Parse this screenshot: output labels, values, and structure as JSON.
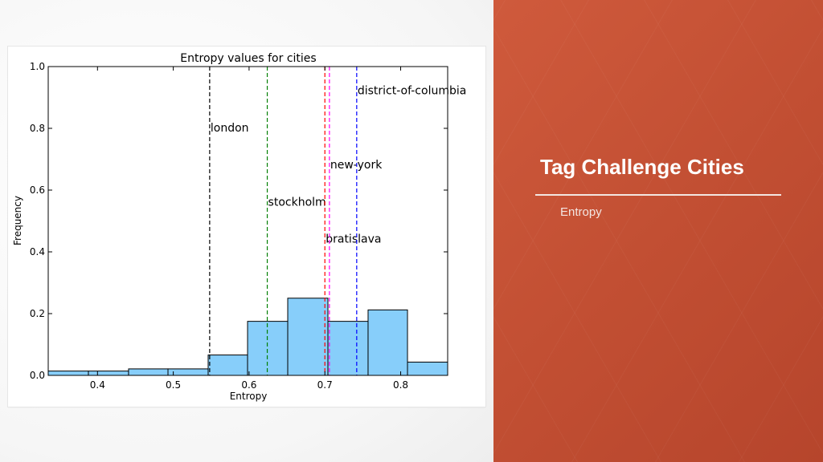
{
  "slide": {
    "title": "Tag Challenge Cities",
    "subtitle": "Entropy",
    "colors": {
      "panel": "#c4502f",
      "text": "#ffffff"
    }
  },
  "chart_data": {
    "type": "bar",
    "title": "Entropy values for cities",
    "xlabel": "Entropy",
    "ylabel": "Frequency",
    "xlim": [
      0.335,
      0.862
    ],
    "ylim": [
      0,
      1.0
    ],
    "xticks": [
      {
        "value": 0.4,
        "label": "0.4"
      },
      {
        "value": 0.5,
        "label": "0.5"
      },
      {
        "value": 0.6,
        "label": "0.6"
      },
      {
        "value": 0.7,
        "label": "0.7"
      },
      {
        "value": 0.8,
        "label": "0.8"
      }
    ],
    "yticks": [
      {
        "value": 0.0,
        "label": "0.0"
      },
      {
        "value": 0.2,
        "label": "0.2"
      },
      {
        "value": 0.4,
        "label": "0.4"
      },
      {
        "value": 0.6,
        "label": "0.6"
      },
      {
        "value": 0.8,
        "label": "0.8"
      },
      {
        "value": 1.0,
        "label": "1.0"
      }
    ],
    "bins": [
      {
        "x0": 0.335,
        "x1": 0.388,
        "value": 0.014
      },
      {
        "x0": 0.388,
        "x1": 0.441,
        "value": 0.014
      },
      {
        "x0": 0.441,
        "x1": 0.493,
        "value": 0.021
      },
      {
        "x0": 0.493,
        "x1": 0.546,
        "value": 0.021
      },
      {
        "x0": 0.546,
        "x1": 0.598,
        "value": 0.066
      },
      {
        "x0": 0.598,
        "x1": 0.651,
        "value": 0.175
      },
      {
        "x0": 0.651,
        "x1": 0.704,
        "value": 0.25
      },
      {
        "x0": 0.704,
        "x1": 0.757,
        "value": 0.175
      },
      {
        "x0": 0.757,
        "x1": 0.809,
        "value": 0.212
      },
      {
        "x0": 0.809,
        "x1": 0.862,
        "value": 0.043
      }
    ],
    "bar_color": "#87cefa",
    "markers": [
      {
        "label": "london",
        "value": 0.548,
        "color": "#000000",
        "label_y": 0.79
      },
      {
        "label": "stockholm",
        "value": 0.624,
        "color": "#008000",
        "label_y": 0.55
      },
      {
        "label": "bratislava",
        "value": 0.7,
        "color": "#ff0000",
        "label_y": 0.43
      },
      {
        "label": "new-york",
        "value": 0.706,
        "color": "#ff00ff",
        "label_y": 0.67
      },
      {
        "label": "district-of-columbia",
        "value": 0.742,
        "color": "#0000ff",
        "label_y": 0.91
      }
    ],
    "grid": false,
    "legend": "none"
  }
}
